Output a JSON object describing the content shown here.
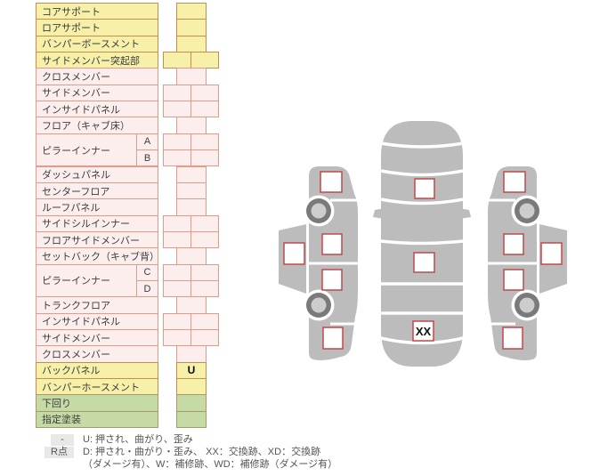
{
  "table": {
    "rows": [
      {
        "label": "コアサポート",
        "group": "yellow",
        "cell": "narrow",
        "value": ""
      },
      {
        "label": "ロアサポート",
        "group": "yellow",
        "cell": "narrow",
        "value": ""
      },
      {
        "label": "バンパーボースメント",
        "group": "yellow",
        "cell": "narrow",
        "value": ""
      },
      {
        "label": "サイドメンバー突起部",
        "group": "yellow",
        "cell": "wide",
        "value": ""
      },
      {
        "label": "クロスメンバー",
        "group": "pink",
        "cell": "narrow",
        "value": ""
      },
      {
        "label": "サイドメンバー",
        "group": "pink",
        "cell": "wide",
        "value": ""
      },
      {
        "label": "インサイドパネル",
        "group": "pink",
        "cell": "wide",
        "value": ""
      },
      {
        "label": "フロア（キャブ床）",
        "group": "pink",
        "cell": "narrow",
        "value": ""
      },
      {
        "label": "ピラーインナー",
        "sub": "A",
        "span": 2,
        "group": "pink",
        "cell": "wide",
        "value": ""
      },
      {
        "sub": "B",
        "group": "pink",
        "cell": "wide",
        "value": ""
      },
      {
        "label": "ダッシュパネル",
        "group": "pink",
        "cell": "narrow",
        "value": ""
      },
      {
        "label": "センターフロア",
        "group": "pink",
        "cell": "narrow",
        "value": ""
      },
      {
        "label": "ルーフパネル",
        "group": "pink",
        "cell": "narrow",
        "value": ""
      },
      {
        "label": "サイドシルインナー",
        "group": "pink",
        "cell": "wide",
        "value": ""
      },
      {
        "label": "フロアサイドメンバー",
        "group": "pink",
        "cell": "wide",
        "value": ""
      },
      {
        "label": "セットバック（キャブ背）",
        "group": "pink",
        "cell": "narrow",
        "value": ""
      },
      {
        "label": "ピラーインナー",
        "sub": "C",
        "span": 2,
        "group": "pink",
        "cell": "wide",
        "value": ""
      },
      {
        "sub": "D",
        "group": "pink",
        "cell": "wide",
        "value": ""
      },
      {
        "label": "トランクフロア",
        "group": "pink",
        "cell": "narrow",
        "value": ""
      },
      {
        "label": "インサイドパネル",
        "group": "pink",
        "cell": "wide",
        "value": ""
      },
      {
        "label": "サイドメンバー",
        "group": "pink",
        "cell": "wide",
        "value": ""
      },
      {
        "label": "クロスメンバー",
        "group": "pink",
        "cell": "narrow",
        "value": ""
      },
      {
        "label": "バックパネル",
        "group": "yellow",
        "cell": "narrow",
        "value": "U"
      },
      {
        "label": "バンパーホースメント",
        "group": "yellow",
        "cell": "narrow",
        "value": ""
      },
      {
        "label": "下回り",
        "group": "green",
        "cell": "narrow",
        "value": ""
      },
      {
        "label": "指定塗装",
        "group": "green",
        "cell": "narrow",
        "value": ""
      }
    ]
  },
  "legend": {
    "row1": {
      "badge": "-",
      "text": "U: 押され、曲がり、歪み"
    },
    "row2": {
      "badge": "R点",
      "text": "D: 押され・曲がり・歪み、 XX：交換跡、XD：交換跡"
    },
    "row3": {
      "text": "（ダメージ有）、W：補修跡、WD：補修跡（ダメージ有）"
    }
  },
  "diagram": {
    "trunk_mark": "XX",
    "views": [
      "left-side",
      "top",
      "right-side"
    ],
    "mark_boxes": {
      "top": [
        "hood",
        "roof",
        "trunk"
      ],
      "left_side": [
        "front-fender",
        "sill",
        "front-door",
        "rear-door",
        "rear-fender"
      ],
      "right_side": [
        "front-fender",
        "sill",
        "front-door",
        "rear-door",
        "rear-fender"
      ]
    }
  },
  "colors": {
    "yellow_bg": "#f7f0a9",
    "yellow_border": "#c68c50",
    "pink_bg": "#fdeeee",
    "pink_border": "#e39a8b",
    "green_bg": "#c6daa6",
    "green_border": "#a89a68",
    "mark_border": "#c14949",
    "car_body": "#bcbcbc",
    "wheel_ring": "#7a7a7a",
    "wheel_hub": "#cdcdcd",
    "legend_badge_bg": "#e8e8e8"
  }
}
